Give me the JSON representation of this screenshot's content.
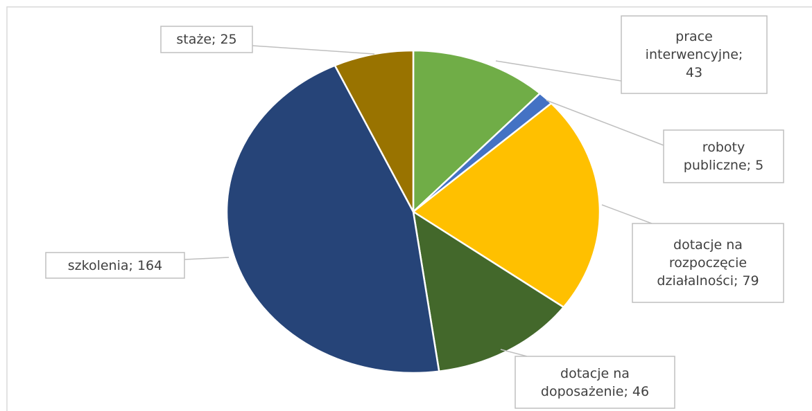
{
  "chart_data": {
    "type": "pie",
    "categories": [
      "prace interwencyjne",
      "roboty publiczne",
      "dotacje na rozpoczęcie działalności",
      "dotacje na doposażenie",
      "szkolenia",
      "staże"
    ],
    "values": [
      43,
      5,
      79,
      46,
      164,
      25
    ],
    "value_labels": [
      "prace interwencyjne; 43",
      "roboty publiczne; 5",
      "dotacje na rozpoczęcie działalności; 79",
      "dotacje na doposażenie; 46",
      "szkolenia; 164",
      "staże; 25"
    ],
    "colors": [
      "#70ad47",
      "#4472c4",
      "#ffc000",
      "#43682b",
      "#264478",
      "#997300"
    ]
  }
}
